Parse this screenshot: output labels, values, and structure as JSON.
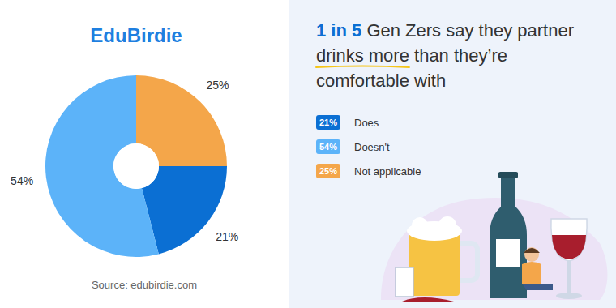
{
  "chart_data": {
    "type": "pie",
    "title": "1 in 5 Gen Zers say they partner drinks more than they’re comfortable with",
    "annotations": [
      "EduBirdie",
      "Source: edubirdie.com"
    ],
    "categories": [
      "Does",
      "Doesn't",
      "Not applicable"
    ],
    "values": [
      21,
      54,
      25
    ],
    "value_labels": [
      "21%",
      "54%",
      "25%"
    ],
    "colors": [
      "#0b6fd3",
      "#5cb3f9",
      "#f4a64a"
    ],
    "data_labels": true,
    "legend": "right"
  }
}
